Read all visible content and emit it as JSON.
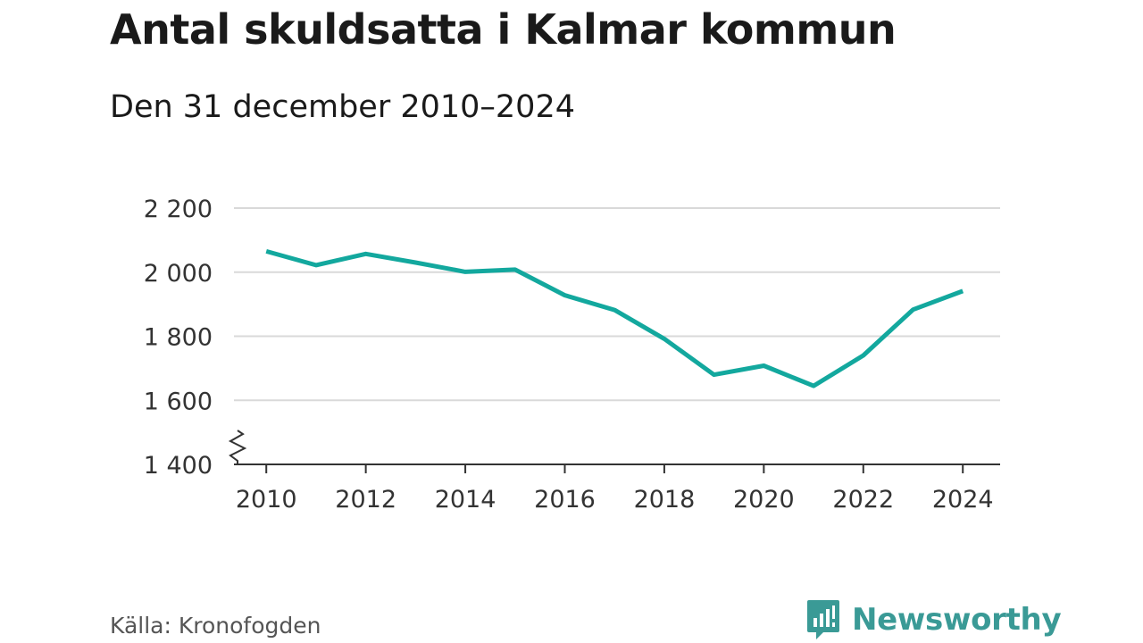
{
  "title": "Antal skuldsatta i Kalmar kommun",
  "subtitle": "Den 31 december 2010–2024",
  "source": "Källa: Kronofogden",
  "brand": {
    "name": "Newsworthy",
    "icon": "newsworthy-logo-icon",
    "color": "#3a9a96"
  },
  "colors": {
    "line": "#13a89e",
    "grid": "#d9d9d9",
    "axis": "#333333"
  },
  "chart_data": {
    "type": "line",
    "x": [
      2010,
      2011,
      2012,
      2013,
      2014,
      2015,
      2016,
      2017,
      2018,
      2019,
      2020,
      2021,
      2022,
      2023,
      2024
    ],
    "values": [
      2065,
      2022,
      2057,
      2030,
      2001,
      2008,
      1928,
      1882,
      1792,
      1680,
      1708,
      1645,
      1740,
      1883,
      1941
    ],
    "xticks": [
      2010,
      2012,
      2014,
      2016,
      2018,
      2020,
      2022,
      2024
    ],
    "xtick_labels": [
      "2010",
      "2012",
      "2014",
      "2016",
      "2018",
      "2020",
      "2022",
      "2024"
    ],
    "yticks": [
      1400,
      1600,
      1800,
      2000,
      2200
    ],
    "ytick_labels": [
      "1 400",
      "1 600",
      "1 800",
      "2 000",
      "2 200"
    ],
    "ylim": [
      1400,
      2200
    ],
    "xlim": [
      2009.35,
      2024.75
    ],
    "grid": true,
    "axis_break": true,
    "xlabel": "",
    "ylabel": ""
  }
}
